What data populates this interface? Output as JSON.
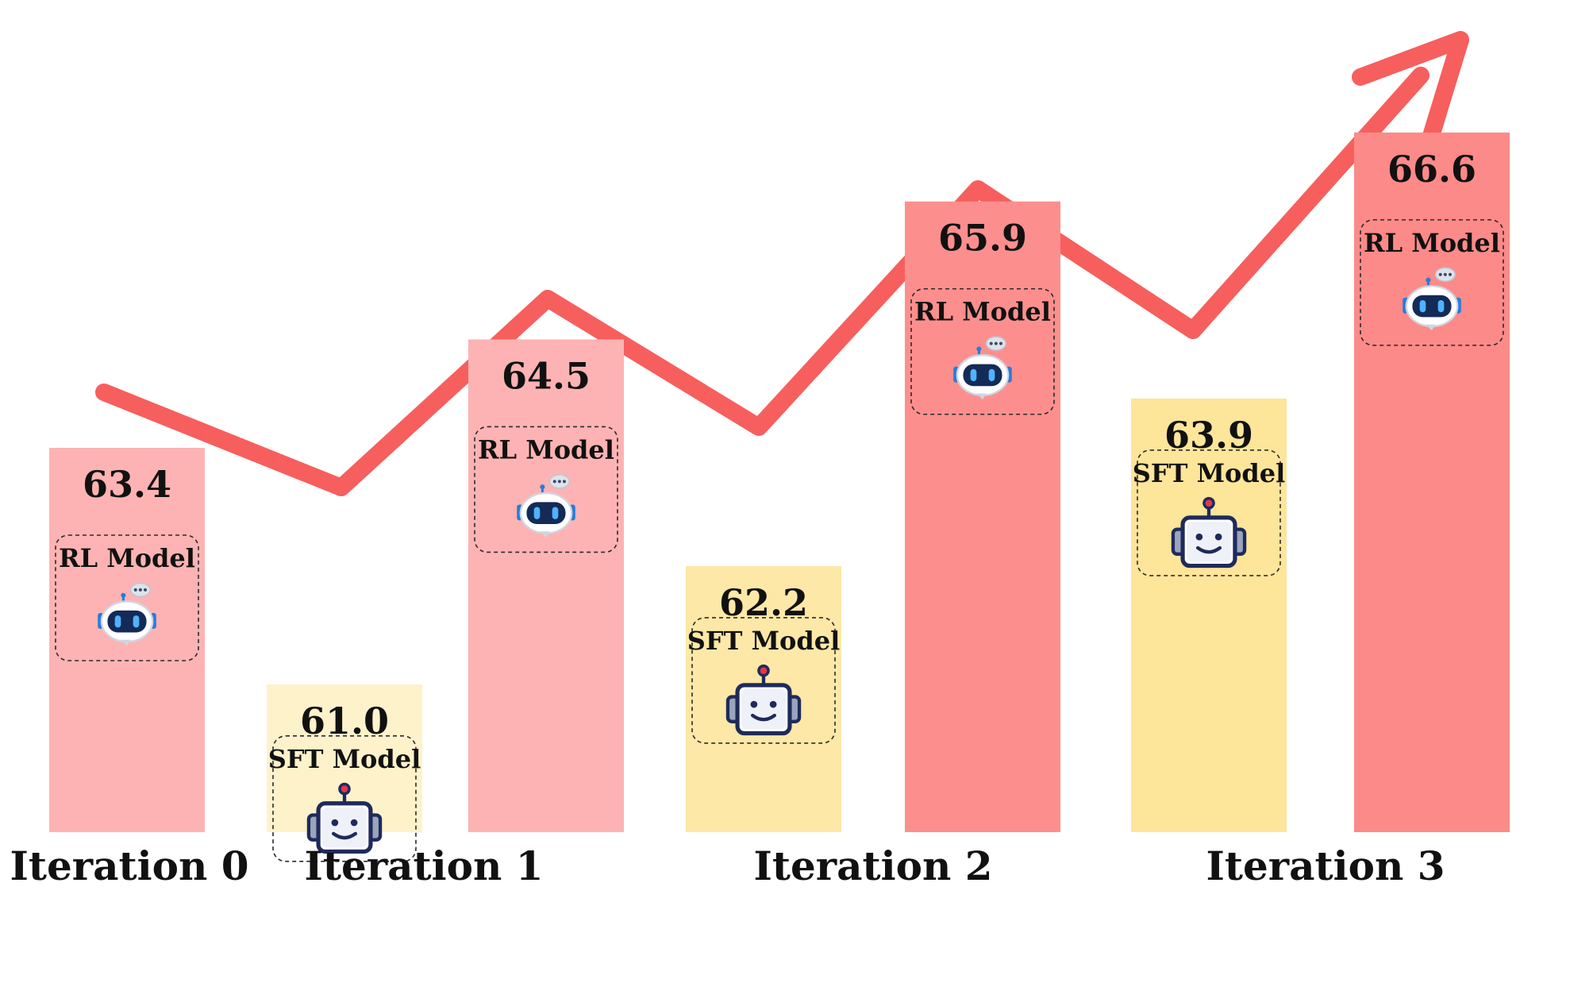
{
  "chart_data": {
    "type": "bar",
    "title": "",
    "xlabel": "",
    "ylabel": "",
    "iteration_labels": [
      "Iteration 0",
      "Iteration 1",
      "Iteration 2",
      "Iteration 3"
    ],
    "bars": [
      {
        "iteration": "Iteration 0",
        "model": "RL Model",
        "value": 63.4
      },
      {
        "iteration": "Iteration 1",
        "model": "SFT Model",
        "value": 61.0
      },
      {
        "iteration": "Iteration 1",
        "model": "RL Model",
        "value": 64.5
      },
      {
        "iteration": "Iteration 2",
        "model": "SFT Model",
        "value": 62.2
      },
      {
        "iteration": "Iteration 2",
        "model": "RL Model",
        "value": 65.9
      },
      {
        "iteration": "Iteration 3",
        "model": "SFT Model",
        "value": 63.9
      },
      {
        "iteration": "Iteration 3",
        "model": "RL Model",
        "value": 66.6
      }
    ],
    "ylim": [
      59.5,
      67.3
    ],
    "trend_arrow": true,
    "colors": {
      "trend": "#f65f5d",
      "rl_shades": [
        "#fdb3b3",
        "#fdb3b3",
        "#fc8f8e",
        "#fc8a88"
      ],
      "sft_shades": [
        "#fef2cb",
        "#fde8a7",
        "#fde59a"
      ],
      "robot_outline": "#1f2a5c",
      "robot_fill": "#ffffff",
      "robot_accent": "#e0384b",
      "robot_eye": "#2a7bd8"
    }
  }
}
